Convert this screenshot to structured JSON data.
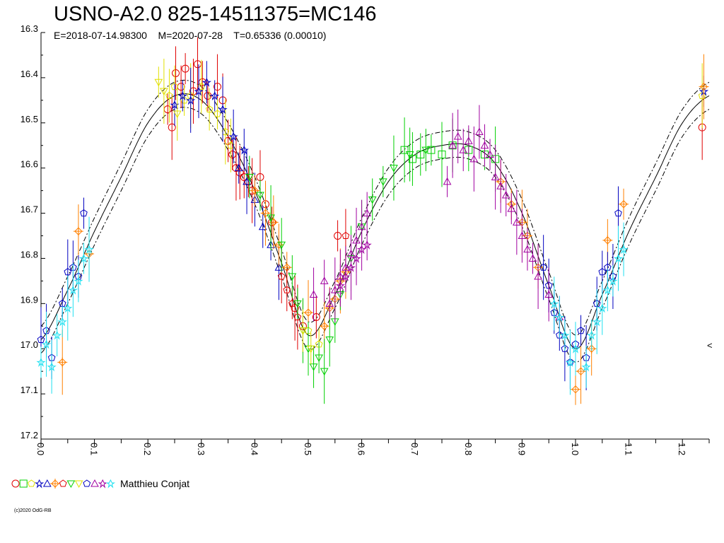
{
  "chart_data": {
    "type": "scatter",
    "title": "USNO-A2.0 825-14511375=MC146",
    "subtitle": "E=2018-07-14.98300    M=2020-07-28    T=0.65336 (0.00010)",
    "xlabel": "",
    "ylabel": "",
    "xlim": [
      0.0,
      1.25
    ],
    "ylim": [
      16.3,
      17.2
    ],
    "y_inverted": true,
    "y_ticks": [
      "16.3",
      "16.4",
      "16.5",
      "16.6",
      "16.7",
      "16.8",
      "16.9",
      "17.0",
      "17.1",
      "17.2"
    ],
    "x_ticks": [
      "0.0",
      "0.1",
      "0.2",
      "0.3",
      "0.4",
      "0.5",
      "0.6",
      "0.7",
      "0.8",
      "0.9",
      "1.0",
      "1.1",
      "1.2"
    ],
    "grid": false,
    "model_curve": {
      "x": [
        0.0,
        0.05,
        0.1,
        0.15,
        0.2,
        0.25,
        0.3,
        0.35,
        0.4,
        0.45,
        0.5,
        0.55,
        0.6,
        0.65,
        0.7,
        0.75,
        0.8,
        0.85,
        0.9,
        0.95,
        1.0,
        1.05,
        1.1,
        1.15,
        1.2,
        1.25
      ],
      "y": [
        16.98,
        16.87,
        16.74,
        16.62,
        16.5,
        16.44,
        16.45,
        16.53,
        16.65,
        16.81,
        16.97,
        16.88,
        16.74,
        16.63,
        16.57,
        16.55,
        16.55,
        16.59,
        16.7,
        16.86,
        17.0,
        16.88,
        16.74,
        16.62,
        16.5,
        16.44
      ],
      "band": 0.03
    },
    "series": [
      {
        "marker": "circle",
        "color": "#e00000",
        "x": [
          0.237,
          0.245,
          0.252,
          0.262,
          0.27,
          0.285,
          0.293,
          0.302,
          0.312,
          0.33,
          0.34,
          0.35,
          0.358,
          0.365,
          0.372,
          0.38,
          0.388,
          0.395,
          0.41,
          0.42,
          0.432,
          0.475,
          0.49,
          0.515,
          0.555,
          1.237
        ],
        "y": [
          16.47,
          16.51,
          16.39,
          16.42,
          16.38,
          16.43,
          16.37,
          16.41,
          16.44,
          16.42,
          16.45,
          16.54,
          16.57,
          16.6,
          16.61,
          16.62,
          16.63,
          16.65,
          16.62,
          16.68,
          16.72,
          16.91,
          16.95,
          16.93,
          16.75,
          16.51
        ]
      },
      {
        "marker": "square",
        "color": "#00d000",
        "x": [
          0.68,
          0.695,
          0.71,
          0.73,
          0.75,
          0.77,
          0.8,
          0.83,
          0.85
        ],
        "y": [
          16.56,
          16.58,
          16.57,
          16.56,
          16.57,
          16.55,
          16.56,
          16.57,
          16.58
        ]
      },
      {
        "marker": "pentagon",
        "color": "#e0e000",
        "x": [
          0.24,
          0.25,
          0.268,
          0.28,
          0.3,
          0.315,
          0.33,
          0.345,
          0.355,
          0.5,
          0.52,
          1.237
        ],
        "y": [
          16.44,
          16.42,
          16.45,
          16.44,
          16.42,
          16.47,
          16.48,
          16.52,
          16.55,
          16.96,
          16.99,
          16.44
        ]
      },
      {
        "marker": "star",
        "color": "#0000c0",
        "x": [
          0.25,
          0.265,
          0.28,
          0.295,
          0.31,
          0.325,
          0.34,
          0.36,
          0.38,
          1.24
        ],
        "y": [
          16.46,
          16.44,
          16.45,
          16.43,
          16.41,
          16.44,
          16.47,
          16.53,
          16.56,
          16.43
        ]
      },
      {
        "marker": "triangle",
        "color": "#0000c0",
        "x": [
          0.37,
          0.385,
          0.4,
          0.415,
          0.43,
          0.445
        ],
        "y": [
          16.6,
          16.63,
          16.67,
          16.73,
          16.77,
          16.82
        ]
      },
      {
        "marker": "diamond-cross",
        "color": "#ff8000",
        "x": [
          0.04,
          0.07,
          0.09,
          0.4,
          0.42,
          0.435,
          0.445,
          0.46,
          0.5,
          0.53,
          0.54,
          0.55,
          0.56,
          0.57,
          0.86,
          0.88,
          0.9,
          0.91,
          0.93,
          1.0,
          1.01,
          1.03,
          1.06,
          1.09,
          1.24
        ],
        "y": [
          17.03,
          16.74,
          16.79,
          16.65,
          16.7,
          16.72,
          16.77,
          16.82,
          16.92,
          16.95,
          16.91,
          16.89,
          16.85,
          16.83,
          16.63,
          16.68,
          16.72,
          16.75,
          16.82,
          17.09,
          17.05,
          17.0,
          16.76,
          16.68,
          16.42
        ]
      },
      {
        "marker": "pentagon",
        "color": "#e00000",
        "x": [
          0.45,
          0.46,
          0.47,
          0.48,
          0.57
        ],
        "y": [
          16.84,
          16.87,
          16.9,
          16.93,
          16.75
        ]
      },
      {
        "marker": "triangle-down",
        "color": "#00d000",
        "x": [
          0.39,
          0.41,
          0.43,
          0.45,
          0.47,
          0.48,
          0.49,
          0.5,
          0.51,
          0.52,
          0.53,
          0.54,
          0.55,
          0.56,
          0.58,
          0.6,
          0.62,
          0.64,
          0.66,
          0.69,
          0.72
        ],
        "y": [
          16.62,
          16.66,
          16.71,
          16.77,
          16.84,
          16.9,
          16.96,
          17.0,
          17.04,
          17.02,
          17.05,
          16.98,
          16.94,
          16.88,
          16.8,
          16.73,
          16.67,
          16.63,
          16.6,
          16.57,
          16.56
        ]
      },
      {
        "marker": "triangle-down",
        "color": "#e0e000",
        "x": [
          0.22,
          0.23,
          0.255,
          0.49,
          0.505
        ],
        "y": [
          16.41,
          16.43,
          16.48,
          16.96,
          17.0
        ]
      },
      {
        "marker": "pentagon",
        "color": "#0000c0",
        "x": [
          0.0,
          0.01,
          0.02,
          0.04,
          0.05,
          0.06,
          0.07,
          0.08,
          0.94,
          0.95,
          0.96,
          0.97,
          0.98,
          0.99,
          1.0,
          1.01,
          1.02,
          1.04,
          1.05,
          1.06,
          1.07,
          1.08
        ],
        "y": [
          16.98,
          16.96,
          17.02,
          16.9,
          16.83,
          16.82,
          16.84,
          16.7,
          16.82,
          16.86,
          16.92,
          16.97,
          17.0,
          17.03,
          16.99,
          16.96,
          17.02,
          16.9,
          16.83,
          16.82,
          16.84,
          16.7
        ]
      },
      {
        "marker": "triangle",
        "color": "#a000a0",
        "x": [
          0.51,
          0.53,
          0.54,
          0.55,
          0.56,
          0.57,
          0.58,
          0.59,
          0.6,
          0.61,
          0.76,
          0.77,
          0.78,
          0.79,
          0.8,
          0.81,
          0.82,
          0.83,
          0.84,
          0.85,
          0.86,
          0.87,
          0.88,
          0.89,
          0.9,
          0.91,
          0.92,
          0.93,
          0.95,
          0.97
        ],
        "y": [
          16.88,
          16.85,
          16.9,
          16.87,
          16.84,
          16.82,
          16.79,
          16.76,
          16.73,
          16.7,
          16.63,
          16.55,
          16.53,
          16.56,
          16.54,
          16.58,
          16.52,
          16.55,
          16.57,
          16.62,
          16.64,
          16.66,
          16.69,
          16.72,
          16.75,
          16.78,
          16.8,
          16.84,
          16.88,
          16.93
        ]
      },
      {
        "marker": "star",
        "color": "#a000a0",
        "x": [
          0.56,
          0.57,
          0.58,
          0.59,
          0.6,
          0.61
        ],
        "y": [
          16.86,
          16.84,
          16.82,
          16.8,
          16.78,
          16.77
        ]
      },
      {
        "marker": "star",
        "color": "#20e0f0",
        "x": [
          0.0,
          0.01,
          0.02,
          0.03,
          0.04,
          0.05,
          0.06,
          0.07,
          0.08,
          0.09,
          0.96,
          0.97,
          0.98,
          0.99,
          1.0,
          1.02,
          1.03,
          1.04,
          1.05,
          1.06,
          1.07,
          1.08,
          1.09
        ],
        "y": [
          17.03,
          16.99,
          17.04,
          16.97,
          16.94,
          16.91,
          16.87,
          16.85,
          16.8,
          16.78,
          16.9,
          16.93,
          16.97,
          17.03,
          17.0,
          17.04,
          16.97,
          16.94,
          16.91,
          16.87,
          16.85,
          16.8,
          16.78
        ]
      }
    ],
    "legend": {
      "label": "Matthieu Conjat",
      "placement": "bottom-left"
    },
    "right_marker": "<"
  },
  "copyright": "(c)2020 OdG-RB"
}
